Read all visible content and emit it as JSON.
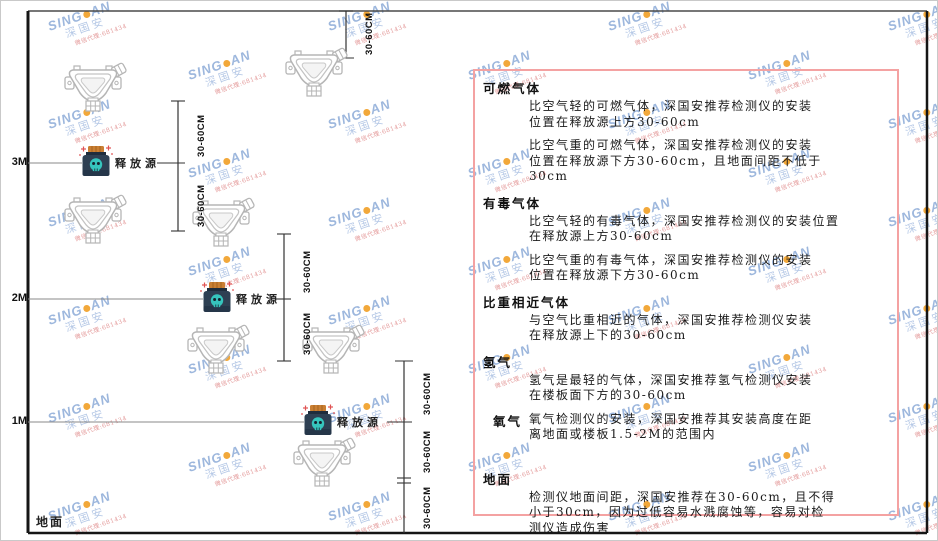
{
  "watermark": {
    "brand_prefix": "SING",
    "brand_suffix": "AN",
    "brand_cn": "深国安",
    "agent_line": "微信代理:681434"
  },
  "icons": {
    "gas_detector": "detector-outline-shape",
    "release_source": "poison-bottle-shape",
    "brand_dot": "orange-circle"
  },
  "colors": {
    "panel_border": "#f4a2a2",
    "detector_stroke": "#b5b5b5",
    "line": "#333333",
    "bottle_body": "#2e4053",
    "bottle_cap": "#ca7f33",
    "skull": "#36c5bd",
    "hazard_red": "#e05252",
    "watermark_blue": "#9db7dd"
  },
  "diagram": {
    "axis_labels": [
      "3M",
      "2M",
      "1M"
    ],
    "ground_label": "地面",
    "release_source_label": "释放源",
    "dim_label": "30-60CM"
  },
  "panel": {
    "sections": [
      {
        "heading": "可燃气体",
        "style": "normal",
        "paragraphs": [
          [
            "比空气轻的可燃气体，深国安推荐检测仪的安装",
            "位置在释放源上方30-60cm"
          ],
          [
            "比空气重的可燃气体，深国安推荐检测仪的安装",
            "位置在释放源下方30-60cm，且地面间距不低于",
            "30cm"
          ]
        ]
      },
      {
        "heading": "有毒气体",
        "style": "normal",
        "paragraphs": [
          [
            "比空气轻的有毒气体，深国安推荐检测仪的安装位置",
            "在释放源上方30-60cm"
          ],
          [
            "比空气重的有毒气体，深国安推荐检测仪的安装",
            "位置在释放源下方30-60cm"
          ]
        ]
      },
      {
        "heading": "比重相近气体",
        "style": "normal",
        "paragraphs": [
          [
            "与空气比重相近的气体，深国安推荐检测仪安装",
            "在释放源上下的30-60cm"
          ]
        ]
      },
      {
        "heading": "氢气",
        "style": "normal",
        "paragraphs": [
          [
            "氢气是最轻的气体，深国安推荐氢气检测仪安装",
            "在楼板面下方的30-60cm"
          ]
        ]
      },
      {
        "heading": "氧气",
        "style": "oxygen",
        "paragraphs": [
          [
            "氧气检测仪的安装，深国安推荐其安装高度在距",
            "离地面或楼板1.5-2M的范围内"
          ]
        ]
      },
      {
        "heading": "地面",
        "style": "ground",
        "paragraphs": [
          [
            "检测仪地面间距，深国安推荐在30-60cm，且不得",
            "小于30cm，因为过低容易水溅腐蚀等，容易对检",
            "测仪造成伤害"
          ]
        ]
      }
    ]
  }
}
